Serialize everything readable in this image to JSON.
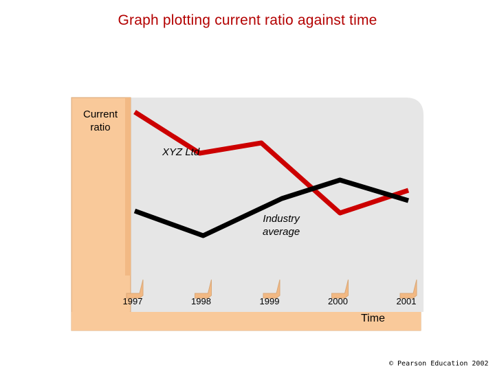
{
  "chart_data": {
    "type": "line",
    "title": "Graph plotting current ratio against time",
    "ylabel": "Current ratio",
    "xlabel": "Time",
    "categories": [
      "1997",
      "1998",
      "1999",
      "2000",
      "2001"
    ],
    "series": [
      {
        "name": "XYZ Ltd",
        "color": "#cc0000",
        "points": [
          {
            "x": 1997,
            "y": 8.7
          },
          {
            "x": 1997.95,
            "y": 6.7
          },
          {
            "x": 1998.85,
            "y": 7.2
          },
          {
            "x": 2000,
            "y": 3.8
          },
          {
            "x": 2001,
            "y": 4.9
          }
        ]
      },
      {
        "name": "Industry average",
        "color": "#000000",
        "points": [
          {
            "x": 1997,
            "y": 3.9
          },
          {
            "x": 1998,
            "y": 2.7
          },
          {
            "x": 1999.15,
            "y": 4.5
          },
          {
            "x": 2000,
            "y": 5.4
          },
          {
            "x": 2001,
            "y": 4.4
          }
        ]
      }
    ],
    "xlim": [
      1997,
      2001
    ],
    "ylim": [
      0,
      10
    ],
    "grid": false,
    "legend": "inline labels"
  },
  "labels": {
    "series_xyz": "XYZ Ltd",
    "series_industry_line1": "Industry",
    "series_industry_line2": "average"
  },
  "copyright": "© Pearson Education 2002"
}
